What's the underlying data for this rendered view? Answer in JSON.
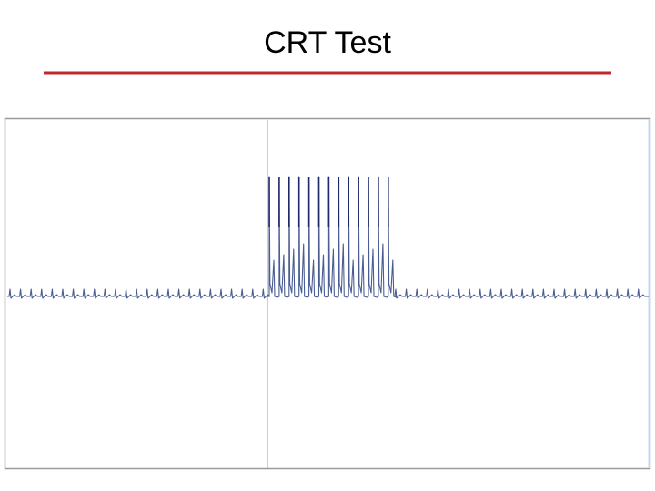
{
  "header": {
    "title": "CRT Test"
  }
}
